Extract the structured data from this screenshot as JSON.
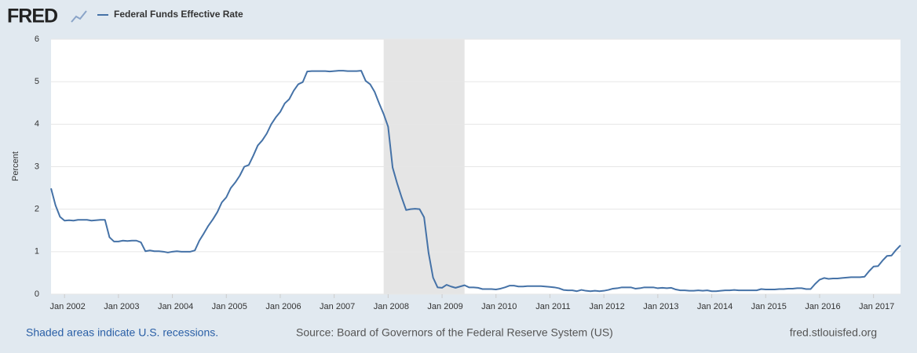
{
  "logo": "FRED",
  "chart_data": {
    "type": "line",
    "ylabel": "Percent",
    "x": [
      "2001-10",
      "2001-11",
      "2001-12",
      "2002-01",
      "2002-02",
      "2002-03",
      "2002-04",
      "2002-05",
      "2002-06",
      "2002-07",
      "2002-08",
      "2002-09",
      "2002-10",
      "2002-11",
      "2002-12",
      "2003-01",
      "2003-02",
      "2003-03",
      "2003-04",
      "2003-05",
      "2003-06",
      "2003-07",
      "2003-08",
      "2003-09",
      "2003-10",
      "2003-11",
      "2003-12",
      "2004-01",
      "2004-02",
      "2004-03",
      "2004-04",
      "2004-05",
      "2004-06",
      "2004-07",
      "2004-08",
      "2004-09",
      "2004-10",
      "2004-11",
      "2004-12",
      "2005-01",
      "2005-02",
      "2005-03",
      "2005-04",
      "2005-05",
      "2005-06",
      "2005-07",
      "2005-08",
      "2005-09",
      "2005-10",
      "2005-11",
      "2005-12",
      "2006-01",
      "2006-02",
      "2006-03",
      "2006-04",
      "2006-05",
      "2006-06",
      "2006-07",
      "2006-08",
      "2006-09",
      "2006-10",
      "2006-11",
      "2006-12",
      "2007-01",
      "2007-02",
      "2007-03",
      "2007-04",
      "2007-05",
      "2007-06",
      "2007-07",
      "2007-08",
      "2007-09",
      "2007-10",
      "2007-11",
      "2007-12",
      "2008-01",
      "2008-02",
      "2008-03",
      "2008-04",
      "2008-05",
      "2008-06",
      "2008-07",
      "2008-08",
      "2008-09",
      "2008-10",
      "2008-11",
      "2008-12",
      "2009-01",
      "2009-02",
      "2009-03",
      "2009-04",
      "2009-05",
      "2009-06",
      "2009-07",
      "2009-08",
      "2009-09",
      "2009-10",
      "2009-11",
      "2009-12",
      "2010-01",
      "2010-02",
      "2010-03",
      "2010-04",
      "2010-05",
      "2010-06",
      "2010-07",
      "2010-08",
      "2010-09",
      "2010-10",
      "2010-11",
      "2010-12",
      "2011-01",
      "2011-02",
      "2011-03",
      "2011-04",
      "2011-05",
      "2011-06",
      "2011-07",
      "2011-08",
      "2011-09",
      "2011-10",
      "2011-11",
      "2011-12",
      "2012-01",
      "2012-02",
      "2012-03",
      "2012-04",
      "2012-05",
      "2012-06",
      "2012-07",
      "2012-08",
      "2012-09",
      "2012-10",
      "2012-11",
      "2012-12",
      "2013-01",
      "2013-02",
      "2013-03",
      "2013-04",
      "2013-05",
      "2013-06",
      "2013-07",
      "2013-08",
      "2013-09",
      "2013-10",
      "2013-11",
      "2013-12",
      "2014-01",
      "2014-02",
      "2014-03",
      "2014-04",
      "2014-05",
      "2014-06",
      "2014-07",
      "2014-08",
      "2014-09",
      "2014-10",
      "2014-11",
      "2014-12",
      "2015-01",
      "2015-02",
      "2015-03",
      "2015-04",
      "2015-05",
      "2015-06",
      "2015-07",
      "2015-08",
      "2015-09",
      "2015-10",
      "2015-11",
      "2015-12",
      "2016-01",
      "2016-02",
      "2016-03",
      "2016-04",
      "2016-05",
      "2016-06",
      "2016-07",
      "2016-08",
      "2016-09",
      "2016-10",
      "2016-11",
      "2016-12",
      "2017-01",
      "2017-02",
      "2017-03",
      "2017-04",
      "2017-05",
      "2017-06",
      "2017-07"
    ],
    "series": [
      {
        "name": "Federal Funds Effective Rate",
        "color": "#4572a7",
        "values": [
          2.49,
          2.09,
          1.82,
          1.73,
          1.74,
          1.73,
          1.75,
          1.75,
          1.75,
          1.73,
          1.74,
          1.75,
          1.75,
          1.34,
          1.24,
          1.24,
          1.26,
          1.25,
          1.26,
          1.26,
          1.22,
          1.01,
          1.03,
          1.01,
          1.01,
          1.0,
          0.98,
          1.0,
          1.01,
          1.0,
          1.0,
          1.0,
          1.03,
          1.26,
          1.43,
          1.61,
          1.76,
          1.93,
          2.16,
          2.28,
          2.5,
          2.63,
          2.79,
          3.0,
          3.04,
          3.26,
          3.5,
          3.62,
          3.78,
          4.0,
          4.16,
          4.29,
          4.49,
          4.59,
          4.79,
          4.94,
          4.99,
          5.24,
          5.25,
          5.25,
          5.25,
          5.25,
          5.24,
          5.25,
          5.26,
          5.26,
          5.25,
          5.25,
          5.25,
          5.26,
          5.02,
          4.94,
          4.76,
          4.49,
          4.24,
          3.94,
          2.98,
          2.61,
          2.28,
          1.98,
          2.0,
          2.01,
          2.0,
          1.81,
          0.97,
          0.39,
          0.16,
          0.15,
          0.22,
          0.18,
          0.15,
          0.18,
          0.21,
          0.16,
          0.16,
          0.15,
          0.12,
          0.12,
          0.12,
          0.11,
          0.13,
          0.16,
          0.2,
          0.2,
          0.18,
          0.18,
          0.19,
          0.19,
          0.19,
          0.19,
          0.18,
          0.17,
          0.16,
          0.14,
          0.1,
          0.09,
          0.09,
          0.07,
          0.1,
          0.08,
          0.07,
          0.08,
          0.07,
          0.08,
          0.1,
          0.13,
          0.14,
          0.16,
          0.16,
          0.16,
          0.13,
          0.14,
          0.16,
          0.16,
          0.16,
          0.14,
          0.15,
          0.14,
          0.15,
          0.11,
          0.09,
          0.09,
          0.08,
          0.08,
          0.09,
          0.08,
          0.09,
          0.07,
          0.07,
          0.08,
          0.09,
          0.09,
          0.1,
          0.09,
          0.09,
          0.09,
          0.09,
          0.09,
          0.12,
          0.11,
          0.11,
          0.11,
          0.12,
          0.12,
          0.13,
          0.13,
          0.14,
          0.14,
          0.12,
          0.12,
          0.24,
          0.34,
          0.38,
          0.36,
          0.37,
          0.37,
          0.38,
          0.39,
          0.4,
          0.4,
          0.4,
          0.41,
          0.54,
          0.65,
          0.66,
          0.79,
          0.9,
          0.91,
          1.04,
          1.15
        ]
      }
    ],
    "xlim": [
      "2001-10",
      "2017-07"
    ],
    "xticks": [
      {
        "value": "2002-01",
        "label": "Jan 2002"
      },
      {
        "value": "2003-01",
        "label": "Jan 2003"
      },
      {
        "value": "2004-01",
        "label": "Jan 2004"
      },
      {
        "value": "2005-01",
        "label": "Jan 2005"
      },
      {
        "value": "2006-01",
        "label": "Jan 2006"
      },
      {
        "value": "2007-01",
        "label": "Jan 2007"
      },
      {
        "value": "2008-01",
        "label": "Jan 2008"
      },
      {
        "value": "2009-01",
        "label": "Jan 2009"
      },
      {
        "value": "2010-01",
        "label": "Jan 2010"
      },
      {
        "value": "2011-01",
        "label": "Jan 2011"
      },
      {
        "value": "2012-01",
        "label": "Jan 2012"
      },
      {
        "value": "2013-01",
        "label": "Jan 2013"
      },
      {
        "value": "2014-01",
        "label": "Jan 2014"
      },
      {
        "value": "2015-01",
        "label": "Jan 2015"
      },
      {
        "value": "2016-01",
        "label": "Jan 2016"
      },
      {
        "value": "2017-01",
        "label": "Jan 2017"
      }
    ],
    "ylim": [
      0,
      6
    ],
    "yticks": [
      0,
      1,
      2,
      3,
      4,
      5,
      6
    ],
    "grid": true,
    "recessions": [
      {
        "start": "2007-12",
        "end": "2009-06"
      }
    ],
    "recession_note": "Shaded areas indicate U.S. recessions.",
    "source": "Source: Board of Governors of the Federal Reserve System (US)",
    "site": "fred.stlouisfed.org"
  }
}
